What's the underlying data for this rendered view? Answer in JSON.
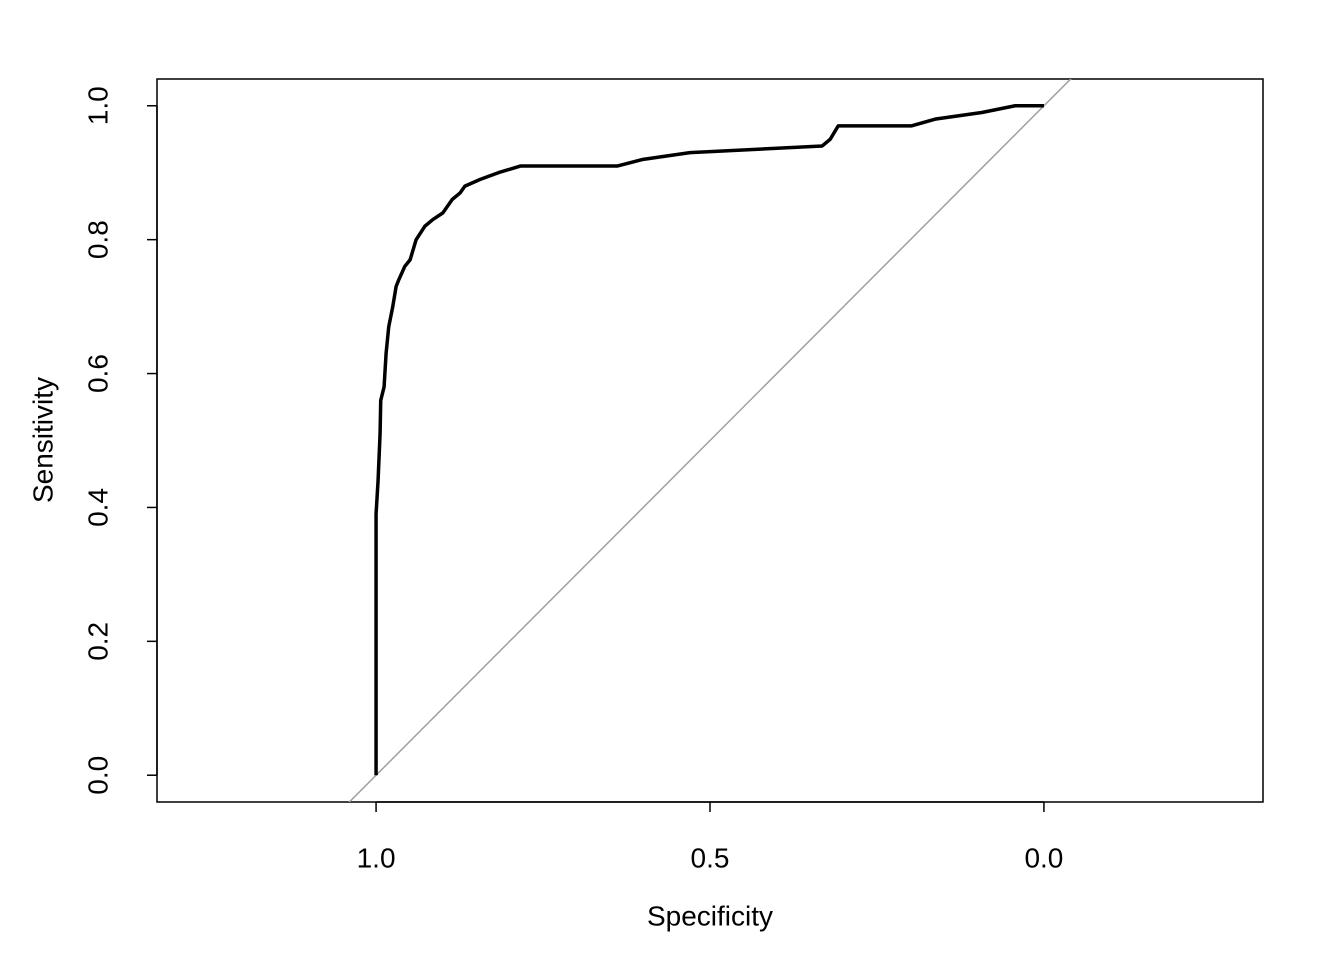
{
  "chart_data": {
    "type": "line",
    "xlabel": "Specificity",
    "ylabel": "Sensitivity",
    "x": [
      1,
      1,
      0.997,
      0.994,
      0.993,
      0.988,
      0.985,
      0.981,
      0.975,
      0.97,
      0.966,
      0.957,
      0.949,
      0.94,
      0.927,
      0.915,
      0.9,
      0.886,
      0.874,
      0.867,
      0.844,
      0.817,
      0.784,
      0.639,
      0.6,
      0.53,
      0.332,
      0.32,
      0.308,
      0.198,
      0.163,
      0.093,
      0.043,
      0
    ],
    "values": [
      0,
      0.39,
      0.44,
      0.51,
      0.56,
      0.58,
      0.63,
      0.67,
      0.7,
      0.73,
      0.74,
      0.76,
      0.77,
      0.8,
      0.82,
      0.83,
      0.84,
      0.86,
      0.87,
      0.88,
      0.89,
      0.9,
      0.91,
      0.91,
      0.92,
      0.93,
      0.94,
      0.95,
      0.97,
      0.97,
      0.98,
      0.99,
      1.0,
      1.0
    ],
    "color": "#000000",
    "diagonal_color": "#a0a0a0",
    "xlim": [
      1.328,
      -0.328
    ],
    "ylim": [
      -0.04,
      1.04
    ],
    "xticks": [
      {
        "value": 1,
        "label": "1.0"
      },
      {
        "value": 0.5,
        "label": "0.5"
      },
      {
        "value": 0,
        "label": "0.0"
      }
    ],
    "yticks": [
      {
        "value": 0,
        "label": "0.0"
      },
      {
        "value": 0.2,
        "label": "0.2"
      },
      {
        "value": 0.4,
        "label": "0.4"
      },
      {
        "value": 0.6,
        "label": "0.6"
      },
      {
        "value": 0.8,
        "label": "0.8"
      },
      {
        "value": 1,
        "label": "1.0"
      }
    ]
  }
}
